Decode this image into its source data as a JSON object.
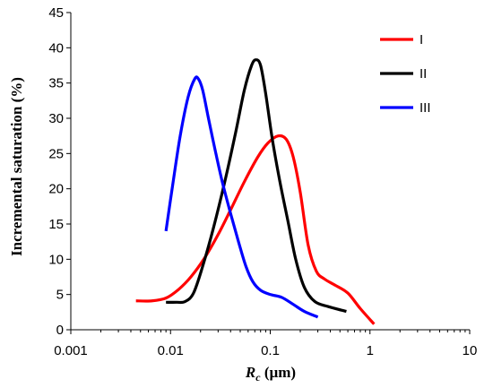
{
  "chart_data": {
    "type": "line",
    "title": "",
    "xlabel": {
      "main": "R",
      "sub": "c",
      "unit": " (µm)"
    },
    "ylabel": "Incremental saturation (%)",
    "xscale": "log",
    "xlim": [
      0.001,
      10
    ],
    "ylim": [
      0,
      45
    ],
    "xticks": [
      {
        "value": 0.001,
        "label": "0.001"
      },
      {
        "value": 0.01,
        "label": "0.01"
      },
      {
        "value": 0.1,
        "label": "0.1"
      },
      {
        "value": 1,
        "label": "1"
      },
      {
        "value": 10,
        "label": "10"
      }
    ],
    "yticks": [
      {
        "value": 0,
        "label": "0"
      },
      {
        "value": 5,
        "label": "5"
      },
      {
        "value": 10,
        "label": "10"
      },
      {
        "value": 15,
        "label": "15"
      },
      {
        "value": 20,
        "label": "20"
      },
      {
        "value": 25,
        "label": "25"
      },
      {
        "value": 30,
        "label": "30"
      },
      {
        "value": 35,
        "label": "35"
      },
      {
        "value": 40,
        "label": "40"
      },
      {
        "value": 45,
        "label": "45"
      }
    ],
    "grid": false,
    "legend_position": "top-right",
    "series": [
      {
        "name": "I",
        "color": "#ff0000",
        "points": [
          [
            0.0045,
            4.1
          ],
          [
            0.0065,
            4.1
          ],
          [
            0.009,
            4.5
          ],
          [
            0.012,
            5.7
          ],
          [
            0.016,
            7.5
          ],
          [
            0.022,
            10.2
          ],
          [
            0.03,
            13.5
          ],
          [
            0.04,
            17.0
          ],
          [
            0.055,
            21.0
          ],
          [
            0.075,
            24.5
          ],
          [
            0.095,
            26.5
          ],
          [
            0.12,
            27.5
          ],
          [
            0.145,
            27.0
          ],
          [
            0.17,
            24.5
          ],
          [
            0.2,
            19.5
          ],
          [
            0.24,
            12.0
          ],
          [
            0.29,
            8.3
          ],
          [
            0.35,
            7.2
          ],
          [
            0.45,
            6.3
          ],
          [
            0.6,
            5.2
          ],
          [
            0.8,
            3.0
          ],
          [
            1.1,
            0.8
          ]
        ]
      },
      {
        "name": "II",
        "color": "#000000",
        "points": [
          [
            0.009,
            3.9
          ],
          [
            0.0115,
            3.9
          ],
          [
            0.014,
            4.0
          ],
          [
            0.017,
            5.2
          ],
          [
            0.021,
            9.0
          ],
          [
            0.027,
            14.5
          ],
          [
            0.035,
            21.0
          ],
          [
            0.045,
            28.0
          ],
          [
            0.055,
            34.0
          ],
          [
            0.065,
            37.5
          ],
          [
            0.072,
            38.3
          ],
          [
            0.08,
            37.5
          ],
          [
            0.09,
            33.5
          ],
          [
            0.105,
            27.0
          ],
          [
            0.125,
            21.0
          ],
          [
            0.15,
            15.5
          ],
          [
            0.18,
            10.0
          ],
          [
            0.22,
            6.0
          ],
          [
            0.28,
            4.0
          ],
          [
            0.38,
            3.3
          ],
          [
            0.58,
            2.6
          ]
        ]
      },
      {
        "name": "III",
        "color": "#0000ff",
        "points": [
          [
            0.009,
            14.0
          ],
          [
            0.0105,
            20.5
          ],
          [
            0.0125,
            27.5
          ],
          [
            0.015,
            33.0
          ],
          [
            0.0175,
            35.6
          ],
          [
            0.019,
            35.6
          ],
          [
            0.021,
            34.0
          ],
          [
            0.024,
            30.0
          ],
          [
            0.028,
            25.5
          ],
          [
            0.033,
            21.0
          ],
          [
            0.04,
            16.5
          ],
          [
            0.048,
            12.5
          ],
          [
            0.057,
            9.0
          ],
          [
            0.067,
            6.8
          ],
          [
            0.08,
            5.6
          ],
          [
            0.1,
            5.0
          ],
          [
            0.13,
            4.6
          ],
          [
            0.17,
            3.6
          ],
          [
            0.22,
            2.6
          ],
          [
            0.3,
            1.8
          ]
        ]
      }
    ]
  }
}
